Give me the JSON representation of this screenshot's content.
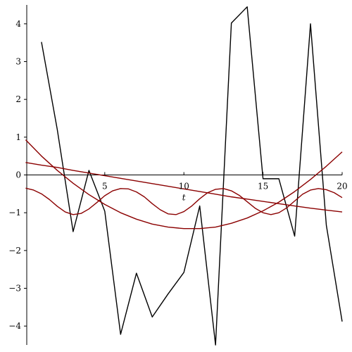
{
  "chart_data": {
    "type": "line",
    "xlabel": "t",
    "ylabel": "",
    "xlim": [
      0.07,
      20
    ],
    "ylim": [
      -4.5,
      4.5
    ],
    "x_ticks": [
      5,
      10,
      15,
      20
    ],
    "y_ticks": [
      -4,
      -3,
      -2,
      -1,
      0,
      1,
      2,
      3,
      4
    ],
    "grid": false,
    "legend": "none",
    "series": [
      {
        "color": "#000000",
        "points": [
          [
            1,
            3.52
          ],
          [
            2,
            1.2
          ],
          [
            3,
            -1.5
          ],
          [
            4,
            0.12
          ],
          [
            5,
            -0.96
          ],
          [
            6,
            -4.22
          ],
          [
            7,
            -2.6
          ],
          [
            8,
            -3.76
          ],
          [
            9,
            -3.15
          ],
          [
            10,
            -2.58
          ],
          [
            11,
            -0.82
          ],
          [
            12,
            -4.5
          ],
          [
            13,
            4.02
          ],
          [
            14,
            4.45
          ],
          [
            15,
            -0.1
          ],
          [
            16,
            -0.1
          ],
          [
            17,
            -1.62
          ],
          [
            18,
            4.0
          ],
          [
            19,
            -1.33
          ],
          [
            20,
            -3.88
          ]
        ]
      },
      {
        "color": "#8b0000",
        "points": [
          [
            0,
            0.33
          ],
          [
            1,
            0.26
          ],
          [
            2,
            0.2
          ],
          [
            3,
            0.12
          ],
          [
            4,
            0.05
          ],
          [
            5,
            -0.02
          ],
          [
            6,
            -0.09
          ],
          [
            7,
            -0.16
          ],
          [
            8,
            -0.23
          ],
          [
            9,
            -0.3
          ],
          [
            10,
            -0.37
          ],
          [
            11,
            -0.44
          ],
          [
            12,
            -0.51
          ],
          [
            13,
            -0.58
          ],
          [
            14,
            -0.64
          ],
          [
            15,
            -0.7
          ],
          [
            16,
            -0.76
          ],
          [
            17,
            -0.82
          ],
          [
            18,
            -0.88
          ],
          [
            19,
            -0.93
          ],
          [
            20,
            -0.98
          ]
        ]
      },
      {
        "color": "#8b0000",
        "points": [
          [
            0,
            0.93
          ],
          [
            1,
            0.5
          ],
          [
            2,
            0.12
          ],
          [
            3,
            -0.22
          ],
          [
            4,
            -0.52
          ],
          [
            5,
            -0.78
          ],
          [
            6,
            -1.0
          ],
          [
            7,
            -1.17
          ],
          [
            8,
            -1.3
          ],
          [
            9,
            -1.38
          ],
          [
            10,
            -1.42
          ],
          [
            11,
            -1.42
          ],
          [
            12,
            -1.38
          ],
          [
            13,
            -1.28
          ],
          [
            14,
            -1.14
          ],
          [
            15,
            -0.95
          ],
          [
            16,
            -0.72
          ],
          [
            17,
            -0.44
          ],
          [
            18,
            -0.12
          ],
          [
            19,
            0.23
          ],
          [
            20,
            0.61
          ]
        ]
      },
      {
        "color": "#8b0000",
        "points": [
          [
            0,
            -0.35
          ],
          [
            0.5,
            -0.4
          ],
          [
            1,
            -0.5
          ],
          [
            1.5,
            -0.65
          ],
          [
            2,
            -0.83
          ],
          [
            2.5,
            -0.98
          ],
          [
            3,
            -1.05
          ],
          [
            3.5,
            -1.02
          ],
          [
            4,
            -0.9
          ],
          [
            4.5,
            -0.73
          ],
          [
            5,
            -0.55
          ],
          [
            5.5,
            -0.42
          ],
          [
            6,
            -0.36
          ],
          [
            6.5,
            -0.37
          ],
          [
            7,
            -0.45
          ],
          [
            7.5,
            -0.58
          ],
          [
            8,
            -0.76
          ],
          [
            8.5,
            -0.92
          ],
          [
            9,
            -1.03
          ],
          [
            9.5,
            -1.05
          ],
          [
            10,
            -0.97
          ],
          [
            10.5,
            -0.82
          ],
          [
            11,
            -0.63
          ],
          [
            11.5,
            -0.47
          ],
          [
            12,
            -0.38
          ],
          [
            12.5,
            -0.36
          ],
          [
            13,
            -0.42
          ],
          [
            13.5,
            -0.54
          ],
          [
            14,
            -0.71
          ],
          [
            14.5,
            -0.88
          ],
          [
            15,
            -1.0
          ],
          [
            15.5,
            -1.05
          ],
          [
            16,
            -1.0
          ],
          [
            16.5,
            -0.87
          ],
          [
            17,
            -0.69
          ],
          [
            17.5,
            -0.51
          ],
          [
            18,
            -0.4
          ],
          [
            18.5,
            -0.36
          ],
          [
            19,
            -0.39
          ],
          [
            19.5,
            -0.47
          ],
          [
            20,
            -0.6
          ]
        ]
      }
    ]
  }
}
